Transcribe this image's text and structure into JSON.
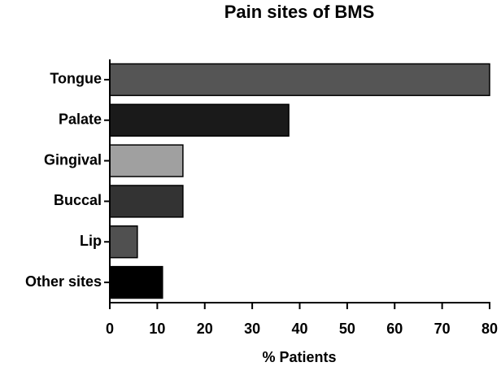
{
  "chart_data": {
    "type": "bar",
    "orientation": "horizontal",
    "title": "Pain sites of BMS",
    "x_label": "% Patients",
    "categories": [
      "Tongue",
      "Palate",
      "Gingival",
      "Buccal",
      "Lip",
      "Other sites"
    ],
    "values": [
      80,
      37.7,
      15.4,
      15.4,
      5.8,
      11.1
    ],
    "colors": [
      "#555555",
      "#1a1a1a",
      "#a0a0a0",
      "#333333",
      "#505050",
      "#000000"
    ],
    "xlim": [
      0,
      80
    ],
    "xticks": [
      0,
      10,
      20,
      30,
      40,
      50,
      60,
      70,
      80
    ]
  }
}
